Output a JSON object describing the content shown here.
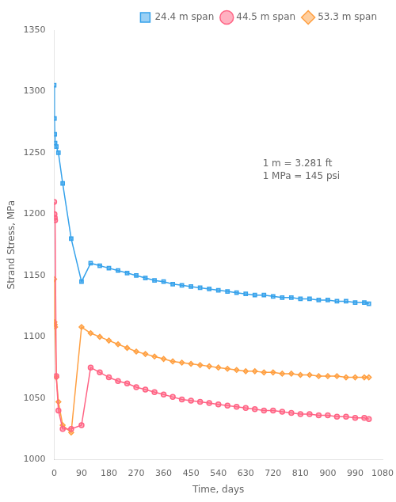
{
  "chart_data": {
    "type": "line",
    "x": [
      0,
      1,
      2,
      3,
      7,
      14,
      28,
      56,
      90,
      120,
      150,
      180,
      210,
      240,
      270,
      300,
      330,
      360,
      390,
      420,
      450,
      480,
      510,
      540,
      570,
      600,
      630,
      660,
      690,
      720,
      750,
      780,
      810,
      840,
      870,
      900,
      930,
      960,
      990,
      1020,
      1035
    ],
    "series": [
      {
        "name": "24.4 m span",
        "marker": "square",
        "values": [
          1305,
          1278,
          1265,
          1258,
          1255,
          1250,
          1225,
          1180,
          1145,
          1160,
          1158,
          1156,
          1154,
          1152,
          1150,
          1148,
          1146,
          1145,
          1143,
          1142,
          1141,
          1140,
          1139,
          1138,
          1137,
          1136,
          1135,
          1134,
          1134,
          1133,
          1132,
          1132,
          1131,
          1131,
          1130,
          1130,
          1129,
          1129,
          1128,
          1128,
          1127
        ]
      },
      {
        "name": "44.5 m span",
        "marker": "circle",
        "values": [
          1210,
          1200,
          1197,
          1195,
          1068,
          1040,
          1025,
          1025,
          1028,
          1075,
          1071,
          1067,
          1064,
          1062,
          1059,
          1057,
          1055,
          1053,
          1051,
          1049,
          1048,
          1047,
          1046,
          1045,
          1044,
          1043,
          1042,
          1041,
          1040,
          1040,
          1039,
          1038,
          1037,
          1037,
          1036,
          1036,
          1035,
          1035,
          1034,
          1034,
          1033
        ]
      },
      {
        "name": "53.3 m span",
        "marker": "diamond",
        "values": [
          1147,
          1112,
          1110,
          1108,
          1067,
          1047,
          1028,
          1022,
          1108,
          1103,
          1100,
          1097,
          1094,
          1091,
          1088,
          1086,
          1084,
          1082,
          1080,
          1079,
          1078,
          1077,
          1076,
          1075,
          1074,
          1073,
          1072,
          1072,
          1071,
          1071,
          1070,
          1070,
          1069,
          1069,
          1068,
          1068,
          1068,
          1067,
          1067,
          1067,
          1067
        ]
      }
    ],
    "xlabel": "Time, days",
    "ylabel": "Strand Stress, MPa",
    "xlim": [
      0,
      1080
    ],
    "ylim": [
      1000,
      1350
    ],
    "xticks": [
      0,
      90,
      180,
      270,
      360,
      450,
      540,
      630,
      720,
      810,
      900,
      990,
      1080
    ],
    "yticks": [
      1000,
      1050,
      1100,
      1150,
      1200,
      1250,
      1300,
      1350
    ],
    "annotation": "1 m = 3.281 ft\n1 MPa = 145 psi",
    "legend": "upper right",
    "grid": false
  }
}
